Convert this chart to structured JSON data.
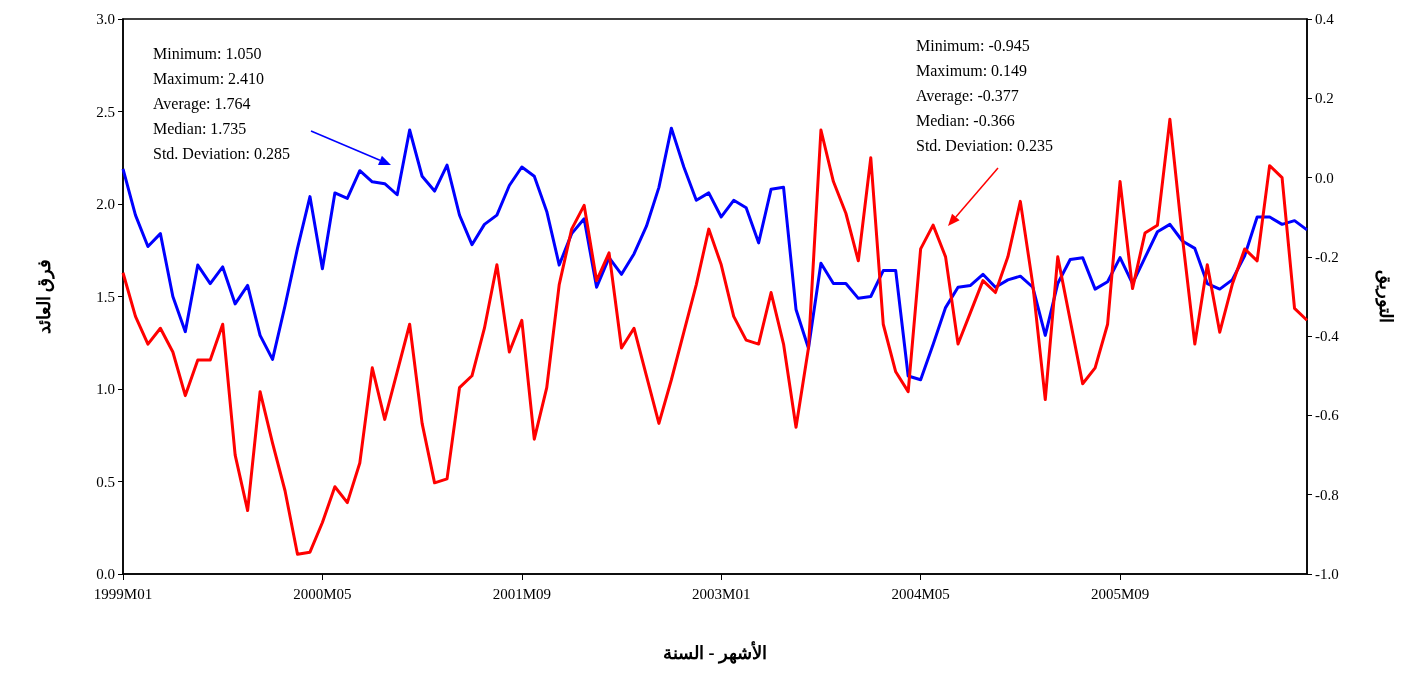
{
  "chart_data": {
    "type": "line",
    "xlabel": "الأشهر - السنة",
    "ylabel": "فرق العائد",
    "y2label": "التوريق",
    "categories": [
      "1999M01",
      null,
      null,
      null,
      null,
      null,
      null,
      null,
      null,
      null,
      null,
      null,
      null,
      null,
      null,
      null,
      "2000M05",
      null,
      null,
      null,
      null,
      null,
      null,
      null,
      null,
      null,
      null,
      null,
      null,
      null,
      null,
      null,
      "2001M09",
      null,
      null,
      null,
      null,
      null,
      null,
      null,
      null,
      null,
      null,
      null,
      null,
      null,
      null,
      null,
      "2003M01",
      null,
      null,
      null,
      null,
      null,
      null,
      null,
      null,
      null,
      null,
      null,
      null,
      null,
      null,
      null,
      "2004M05",
      null,
      null,
      null,
      null,
      null,
      null,
      null,
      null,
      null,
      null,
      null,
      null,
      null,
      null,
      null,
      "2005M09",
      null,
      null,
      null,
      null,
      null,
      null,
      null,
      null,
      null,
      null,
      null,
      null,
      null,
      null,
      null
    ],
    "series": [
      {
        "color": "#0000ff",
        "values": [
          2.19,
          1.94,
          1.77,
          1.84,
          1.5,
          1.31,
          1.67,
          1.57,
          1.66,
          1.46,
          1.56,
          1.29,
          1.16,
          1.45,
          1.76,
          2.04,
          1.65,
          2.06,
          2.03,
          2.18,
          2.12,
          2.11,
          2.05,
          2.4,
          2.15,
          2.07,
          2.21,
          1.94,
          1.78,
          1.89,
          1.94,
          2.1,
          2.2,
          2.15,
          1.96,
          1.67,
          1.84,
          1.92,
          1.55,
          1.71,
          1.62,
          1.73,
          1.88,
          2.09,
          2.41,
          2.2,
          2.02,
          2.06,
          1.93,
          2.02,
          1.98,
          1.79,
          2.08,
          2.09,
          1.43,
          1.22,
          1.68,
          1.57,
          1.57,
          1.49,
          1.5,
          1.64,
          1.64,
          1.07,
          1.05,
          1.24,
          1.44,
          1.55,
          1.56,
          1.62,
          1.55,
          1.59,
          1.61,
          1.55,
          1.29,
          1.57,
          1.7,
          1.71,
          1.54,
          1.58,
          1.71,
          1.57,
          1.71,
          1.85,
          1.89,
          1.8,
          1.76,
          1.57,
          1.54,
          1.59,
          1.72,
          1.93,
          1.93,
          1.89,
          1.91,
          1.86
        ]
      },
      {
        "color": "#ff0000",
        "axis": "y2",
        "values": [
          -0.24,
          -0.35,
          -0.42,
          -0.38,
          -0.44,
          -0.55,
          -0.46,
          -0.46,
          -0.37,
          -0.7,
          -0.84,
          -0.54,
          -0.67,
          -0.79,
          -0.95,
          -0.945,
          -0.87,
          -0.78,
          -0.82,
          -0.72,
          -0.48,
          -0.61,
          -0.49,
          -0.37,
          -0.62,
          -0.77,
          -0.76,
          -0.53,
          -0.5,
          -0.38,
          -0.22,
          -0.44,
          -0.36,
          -0.66,
          -0.53,
          -0.27,
          -0.13,
          -0.07,
          -0.26,
          -0.19,
          -0.43,
          -0.38,
          -0.5,
          -0.62,
          -0.51,
          -0.39,
          -0.27,
          -0.13,
          -0.22,
          -0.35,
          -0.41,
          -0.42,
          -0.29,
          -0.42,
          -0.63,
          -0.43,
          0.12,
          -0.01,
          -0.09,
          -0.21,
          0.05,
          -0.37,
          -0.49,
          -0.54,
          -0.18,
          -0.12,
          -0.2,
          -0.42,
          -0.34,
          -0.26,
          -0.29,
          -0.2,
          -0.06,
          -0.27,
          -0.56,
          -0.2,
          -0.36,
          -0.52,
          -0.48,
          -0.37,
          -0.01,
          -0.28,
          -0.14,
          -0.12,
          0.147,
          -0.15,
          -0.42,
          -0.22,
          -0.39,
          -0.27,
          -0.18,
          -0.21,
          0.03,
          0.0,
          -0.33,
          -0.36
        ]
      }
    ],
    "ylim": [
      0,
      3
    ],
    "yticks": [
      {
        "value": 0,
        "label": "0.0"
      },
      {
        "value": 0.5,
        "label": "0.5"
      },
      {
        "value": 1,
        "label": "1.0"
      },
      {
        "value": 1.5,
        "label": "1.5"
      },
      {
        "value": 2,
        "label": "2.0"
      },
      {
        "value": 2.5,
        "label": "2.5"
      },
      {
        "value": 3,
        "label": "3.0"
      }
    ],
    "y2lim": [
      -1,
      0.4
    ],
    "y2ticks": [
      {
        "value": -1,
        "label": "-1.0"
      },
      {
        "value": -0.8,
        "label": "-0.8"
      },
      {
        "value": -0.6,
        "label": "-0.6"
      },
      {
        "value": -0.4,
        "label": "-0.4"
      },
      {
        "value": -0.2,
        "label": "-0.2"
      },
      {
        "value": 0,
        "label": "0.0"
      },
      {
        "value": 0.2,
        "label": "0.2"
      },
      {
        "value": 0.4,
        "label": "0.4"
      }
    ],
    "annotations": [
      "Minimum: 1.050\nMaximum: 2.410\nAverage: 1.764\nMedian: 1.735\nStd. Deviation: 0.285",
      "Minimum: -0.945\nMaximum: 0.149\nAverage: -0.377\nMedian: -0.366\nStd. Deviation: 0.235"
    ],
    "grid": false,
    "marker": "none",
    "line_style": "solid"
  }
}
